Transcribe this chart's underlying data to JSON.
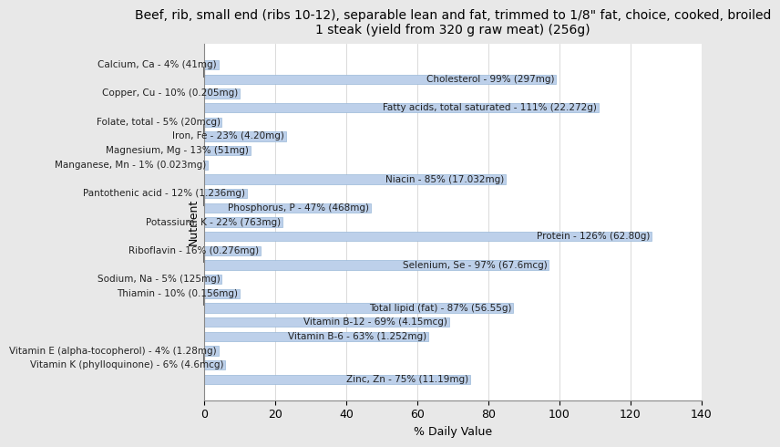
{
  "title": "Beef, rib, small end (ribs 10-12), separable lean and fat, trimmed to 1/8\" fat, choice, cooked, broiled\n1 steak (yield from 320 g raw meat) (256g)",
  "xlabel": "% Daily Value",
  "ylabel": "Nutrient",
  "xlim": [
    0,
    140
  ],
  "xticks": [
    0,
    20,
    40,
    60,
    80,
    100,
    120,
    140
  ],
  "bar_color": "#bdd0ea",
  "bar_edge_color": "#9ab8d8",
  "background_color": "#e8e8e8",
  "plot_background": "#ffffff",
  "nutrients": [
    {
      "label": "Calcium, Ca - 4% (41mg)",
      "value": 4
    },
    {
      "label": "Cholesterol - 99% (297mg)",
      "value": 99
    },
    {
      "label": "Copper, Cu - 10% (0.205mg)",
      "value": 10
    },
    {
      "label": "Fatty acids, total saturated - 111% (22.272g)",
      "value": 111
    },
    {
      "label": "Folate, total - 5% (20mcg)",
      "value": 5
    },
    {
      "label": "Iron, Fe - 23% (4.20mg)",
      "value": 23
    },
    {
      "label": "Magnesium, Mg - 13% (51mg)",
      "value": 13
    },
    {
      "label": "Manganese, Mn - 1% (0.023mg)",
      "value": 1
    },
    {
      "label": "Niacin - 85% (17.032mg)",
      "value": 85
    },
    {
      "label": "Pantothenic acid - 12% (1.236mg)",
      "value": 12
    },
    {
      "label": "Phosphorus, P - 47% (468mg)",
      "value": 47
    },
    {
      "label": "Potassium, K - 22% (763mg)",
      "value": 22
    },
    {
      "label": "Protein - 126% (62.80g)",
      "value": 126
    },
    {
      "label": "Riboflavin - 16% (0.276mg)",
      "value": 16
    },
    {
      "label": "Selenium, Se - 97% (67.6mcg)",
      "value": 97
    },
    {
      "label": "Sodium, Na - 5% (125mg)",
      "value": 5
    },
    {
      "label": "Thiamin - 10% (0.156mg)",
      "value": 10
    },
    {
      "label": "Total lipid (fat) - 87% (56.55g)",
      "value": 87
    },
    {
      "label": "Vitamin B-12 - 69% (4.15mcg)",
      "value": 69
    },
    {
      "label": "Vitamin B-6 - 63% (1.252mg)",
      "value": 63
    },
    {
      "label": "Vitamin E (alpha-tocopherol) - 4% (1.28mg)",
      "value": 4
    },
    {
      "label": "Vitamin K (phylloquinone) - 6% (4.6mcg)",
      "value": 6
    },
    {
      "label": "Zinc, Zn - 75% (11.19mg)",
      "value": 75
    }
  ],
  "title_fontsize": 10,
  "label_fontsize": 7.5,
  "axis_label_fontsize": 9,
  "tick_fontsize": 9,
  "group_ticks_y": [
    21.5,
    17.5,
    12.5,
    8.5,
    5.5,
    1.5
  ]
}
